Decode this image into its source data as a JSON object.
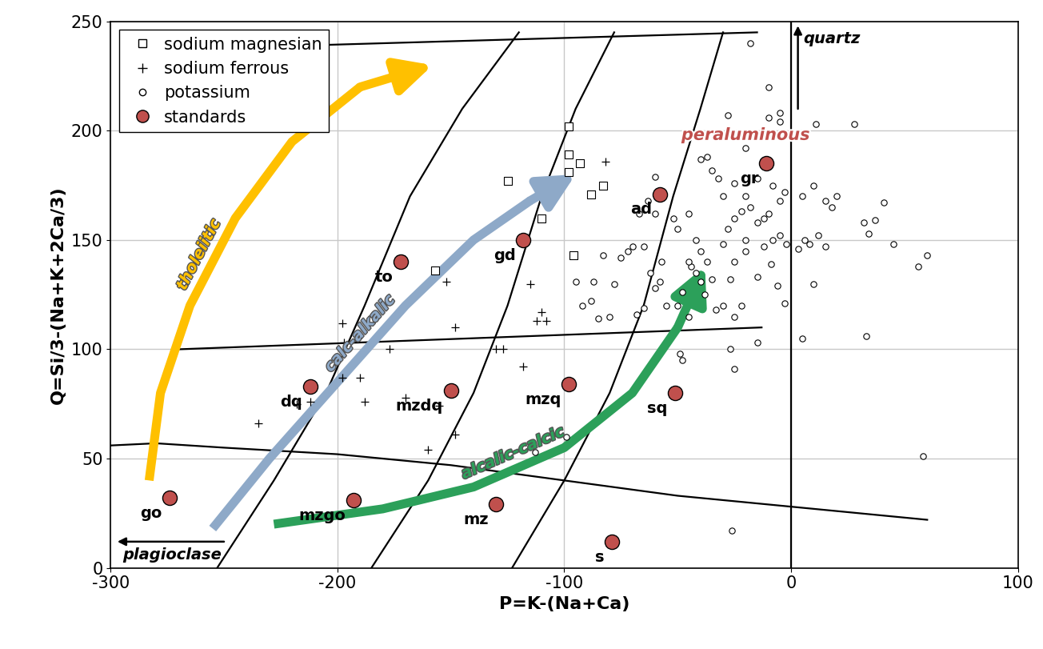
{
  "chart_data": {
    "type": "scatter",
    "xlabel": "P=K-(Na+Ca)",
    "ylabel": "Q=Si/3-(Na+K+2Ca/3)",
    "xlim": [
      -300,
      100
    ],
    "ylim": [
      0,
      250
    ],
    "xticks": [
      -300,
      -200,
      -100,
      0,
      100
    ],
    "yticks": [
      0,
      50,
      100,
      150,
      200,
      250
    ],
    "grid": true,
    "legend": "upper left",
    "series": [
      {
        "name": "sodium magnesian",
        "marker": "square",
        "color": "#000000",
        "x": [
          -98,
          -98,
          -98,
          -93,
          -88,
          -83,
          -110,
          -125,
          -172,
          -157,
          -96
        ],
        "y": [
          202,
          189,
          181,
          185,
          171,
          175,
          160,
          177,
          141,
          136,
          143
        ]
      },
      {
        "name": "sodium ferrous",
        "marker": "plus",
        "color": "#000000",
        "x": [
          -235,
          -212,
          -218,
          -198,
          -190,
          -188,
          -177,
          -170,
          -198,
          -197,
          -148,
          -130,
          -127,
          -118,
          -112,
          -110,
          -108,
          -115,
          -82,
          -152,
          -155,
          -160,
          -148
        ],
        "y": [
          66,
          76,
          75,
          87,
          87,
          76,
          100,
          78,
          112,
          103,
          110,
          100,
          100,
          92,
          113,
          117,
          113,
          130,
          186,
          131,
          74,
          54,
          61
        ]
      },
      {
        "name": "potassium",
        "marker": "circle",
        "color": "#000000",
        "x": [
          -99,
          -113,
          -26,
          58,
          -18,
          -10,
          -10,
          -28,
          -5,
          -5,
          11,
          28,
          -20,
          -40,
          -35,
          -25,
          -15,
          -8,
          -3,
          -5,
          5,
          10,
          15,
          20,
          -60,
          -63,
          -60,
          -67,
          -52,
          -50,
          -45,
          -42,
          -40,
          -37,
          -35,
          -30,
          -28,
          -25,
          -22,
          -18,
          -15,
          -12,
          -10,
          -8,
          -5,
          -2,
          3,
          6,
          8,
          12,
          15,
          18,
          32,
          34,
          37,
          41,
          45,
          56,
          60,
          33,
          10,
          5,
          -3,
          -15,
          -20,
          -25,
          -27,
          -30,
          -25,
          -22,
          -27,
          -25,
          -15,
          -45,
          -48,
          -50,
          -55,
          -58,
          -62,
          -65,
          -70,
          -72,
          -75,
          -78,
          -68,
          -65,
          -60,
          -80,
          -85,
          -88,
          -87,
          -92,
          -95,
          -83,
          -49,
          -48,
          -44,
          -42,
          -40,
          -38,
          -33,
          -20,
          -12,
          -9,
          -6,
          -45,
          -57,
          -20,
          -30,
          -32,
          -37
        ],
        "y": [
          60,
          53,
          17,
          51,
          240,
          206,
          220,
          207,
          208,
          204,
          203,
          203,
          192,
          187,
          182,
          176,
          178,
          175,
          172,
          168,
          170,
          175,
          168,
          170,
          179,
          168,
          162,
          162,
          160,
          155,
          162,
          150,
          145,
          140,
          132,
          148,
          155,
          160,
          163,
          165,
          158,
          160,
          162,
          150,
          152,
          148,
          146,
          150,
          148,
          152,
          147,
          165,
          158,
          153,
          159,
          167,
          148,
          138,
          143,
          106,
          130,
          105,
          121,
          133,
          145,
          140,
          132,
          120,
          115,
          120,
          100,
          91,
          103,
          115,
          126,
          120,
          120,
          131,
          135,
          147,
          147,
          145,
          142,
          130,
          116,
          119,
          128,
          115,
          114,
          122,
          131,
          120,
          131,
          143,
          98,
          95,
          138,
          135,
          131,
          125,
          118,
          150,
          147,
          139,
          129,
          140,
          140,
          170,
          170,
          178,
          188
        ]
      },
      {
        "name": "standards",
        "marker": "circle",
        "color": "#c0504d",
        "x": [
          -274,
          -172,
          -118,
          -58,
          -11,
          -212,
          -150,
          -98,
          -51,
          -193,
          -130,
          -79
        ],
        "y": [
          32,
          140,
          150,
          171,
          185,
          83,
          81,
          84,
          80,
          31,
          29,
          12
        ],
        "point_labels": [
          "go",
          "to",
          "gd",
          "ad",
          "gr",
          "dq",
          "mzdq",
          "mzq",
          "sq",
          "mzgo",
          "mz",
          "s"
        ]
      }
    ],
    "boundaries": [
      {
        "x": [
          -280,
          -15
        ],
        "y": [
          237,
          245
        ]
      },
      {
        "x": [
          -270,
          -13
        ],
        "y": [
          100,
          110
        ]
      },
      {
        "x": [
          -300,
          -280,
          -250,
          -200,
          -150,
          -100,
          -50,
          0,
          60
        ],
        "y": [
          56,
          57,
          55,
          52,
          47,
          40,
          33,
          28,
          22
        ]
      },
      {
        "x": [
          0,
          0
        ],
        "y": [
          0,
          250
        ]
      },
      {
        "x": [
          -253,
          -228,
          -205,
          -188,
          -168,
          -145,
          -120
        ],
        "y": [
          0,
          40,
          80,
          120,
          170,
          210,
          245
        ]
      },
      {
        "x": [
          -185,
          -160,
          -140,
          -125,
          -110,
          -95,
          -78
        ],
        "y": [
          0,
          40,
          80,
          120,
          170,
          210,
          245
        ]
      },
      {
        "x": [
          -123,
          -100,
          -80,
          -65,
          -52,
          -40,
          -30
        ],
        "y": [
          0,
          40,
          80,
          120,
          170,
          210,
          245
        ]
      }
    ],
    "trends": [
      {
        "name": "tholeiitic",
        "color": "#ffc000",
        "x": [
          -283,
          -278,
          -265,
          -245,
          -220,
          -190,
          -158
        ],
        "y": [
          40,
          80,
          120,
          160,
          195,
          220,
          230
        ]
      },
      {
        "name": "calc-alkalic",
        "color": "#8ea9c8",
        "x": [
          -255,
          -230,
          -200,
          -170,
          -140,
          -115,
          -95
        ],
        "y": [
          18,
          50,
          85,
          120,
          150,
          168,
          180
        ]
      },
      {
        "name": "alcalic-calcic",
        "color": "#2ca05a",
        "x": [
          -228,
          -180,
          -140,
          -100,
          -70,
          -50,
          -38
        ],
        "y": [
          20,
          27,
          37,
          55,
          80,
          110,
          138
        ]
      }
    ],
    "annotations": [
      {
        "text": "quartz",
        "arrow_from": [
          3,
          210
        ],
        "arrow_to": [
          3,
          248
        ]
      },
      {
        "text": "plagioclase",
        "arrow_from": [
          -250,
          12
        ],
        "arrow_to": [
          -297,
          12
        ]
      }
    ],
    "region_labels": [
      {
        "text": "peraluminous",
        "x": -20,
        "y": 198,
        "color": "#c0504d"
      }
    ]
  }
}
